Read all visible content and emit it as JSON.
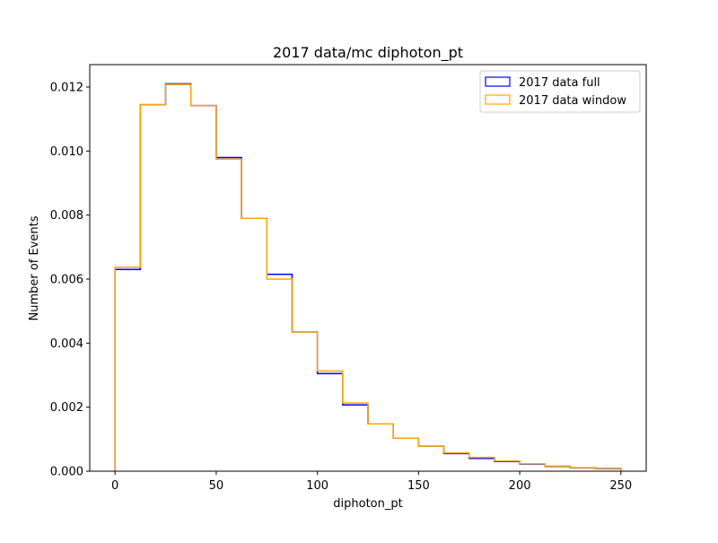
{
  "chart_data": {
    "type": "histogram-step",
    "title": "2017 data/mc diphoton_pt",
    "xlabel": "diphoton_pt",
    "ylabel": "Number of Events",
    "xlim": [
      -12.5,
      262.5
    ],
    "ylim": [
      0,
      0.0127
    ],
    "x_ticks": [
      {
        "value": 0,
        "label": "0"
      },
      {
        "value": 50,
        "label": "50"
      },
      {
        "value": 100,
        "label": "100"
      },
      {
        "value": 150,
        "label": "150"
      },
      {
        "value": 200,
        "label": "200"
      },
      {
        "value": 250,
        "label": "250"
      }
    ],
    "y_ticks": [
      {
        "value": 0,
        "label": "0.000"
      },
      {
        "value": 0.002,
        "label": "0.002"
      },
      {
        "value": 0.004,
        "label": "0.004"
      },
      {
        "value": 0.006,
        "label": "0.006"
      },
      {
        "value": 0.008,
        "label": "0.008"
      },
      {
        "value": 0.01,
        "label": "0.010"
      },
      {
        "value": 0.012,
        "label": "0.012"
      }
    ],
    "bin_edges": [
      0,
      12.5,
      25,
      37.5,
      50,
      62.5,
      75,
      87.5,
      100,
      112.5,
      125,
      137.5,
      150,
      162.5,
      175,
      187.5,
      200,
      212.5,
      225,
      237.5,
      250
    ],
    "grid": false,
    "legend_position": "top-right",
    "series": [
      {
        "name": "2017 data full",
        "color": "#0000ff",
        "values": [
          0.0063,
          0.01145,
          0.0121,
          0.01142,
          0.0098,
          0.0079,
          0.00615,
          0.00435,
          0.00305,
          0.00207,
          0.00148,
          0.00103,
          0.00078,
          0.00055,
          0.0004,
          0.0003,
          0.00022,
          0.00015,
          0.0001,
          8e-05
        ]
      },
      {
        "name": "2017 data window",
        "color": "#ffa500",
        "values": [
          0.00637,
          0.01145,
          0.01208,
          0.01142,
          0.00975,
          0.0079,
          0.006,
          0.00435,
          0.00313,
          0.00213,
          0.00148,
          0.00103,
          0.00078,
          0.00057,
          0.00043,
          0.00032,
          0.00023,
          0.00016,
          0.00011,
          7e-05
        ]
      }
    ]
  }
}
